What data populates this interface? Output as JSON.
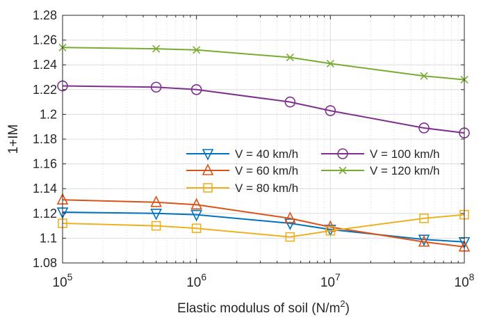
{
  "chart_data": {
    "type": "line",
    "xlabel": "Elastic modulus of soil (N/m",
    "xlabel_sup": "2",
    "xlabel_end": ")",
    "ylabel": "1+IM",
    "x_scale": "log",
    "xlim": [
      100000,
      100000000
    ],
    "ylim": [
      1.08,
      1.28
    ],
    "grid": true,
    "legend_position": "middle-right",
    "x": [
      100000,
      500000,
      1000000,
      5000000,
      10000000,
      50000000,
      100000000
    ],
    "x_ticks": [
      {
        "base": "10",
        "exp": "5",
        "value": 100000
      },
      {
        "base": "10",
        "exp": "6",
        "value": 1000000
      },
      {
        "base": "10",
        "exp": "7",
        "value": 10000000
      },
      {
        "base": "10",
        "exp": "8",
        "value": 100000000
      }
    ],
    "y_ticks": [
      "1.08",
      "1.1",
      "1.12",
      "1.14",
      "1.16",
      "1.18",
      "1.2",
      "1.22",
      "1.24",
      "1.26",
      "1.28"
    ],
    "series": [
      {
        "name": "V = 40 km/h",
        "color": "#0072BD",
        "marker": "triangle-down",
        "values": [
          1.121,
          1.12,
          1.119,
          1.112,
          1.107,
          1.099,
          1.097
        ]
      },
      {
        "name": "V = 60 km/h",
        "color": "#D95319",
        "marker": "triangle-up",
        "values": [
          1.131,
          1.129,
          1.127,
          1.116,
          1.109,
          1.097,
          1.093
        ]
      },
      {
        "name": "V = 80 km/h",
        "color": "#EDB120",
        "marker": "square",
        "values": [
          1.112,
          1.11,
          1.108,
          1.101,
          1.106,
          1.116,
          1.119
        ]
      },
      {
        "name": "V = 100 km/h",
        "color": "#7E2F8E",
        "marker": "circle",
        "values": [
          1.223,
          1.222,
          1.22,
          1.21,
          1.203,
          1.189,
          1.185
        ]
      },
      {
        "name": "V = 120 km/h",
        "color": "#77AC30",
        "marker": "x",
        "values": [
          1.254,
          1.253,
          1.252,
          1.246,
          1.241,
          1.231,
          1.228
        ]
      }
    ]
  }
}
